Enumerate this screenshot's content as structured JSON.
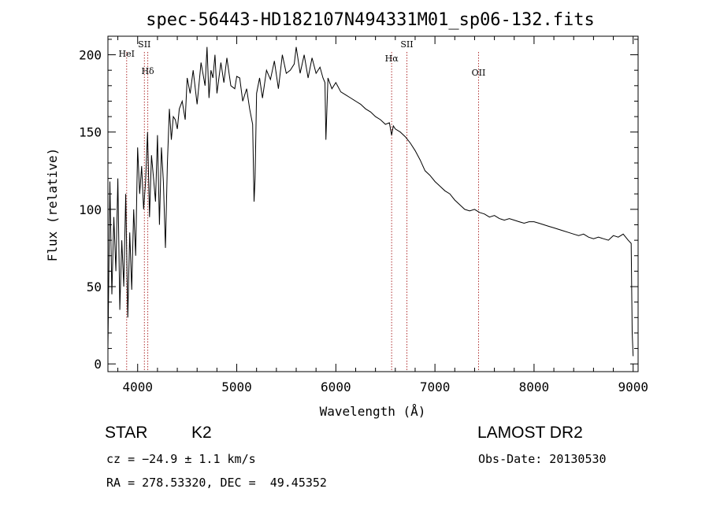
{
  "chart_data": {
    "type": "line",
    "title": "spec-56443-HD182107N494331M01_sp06-132.fits",
    "xlabel": "Wavelength (Å)",
    "ylabel": "Flux (relative)",
    "xlim": [
      3700,
      9050
    ],
    "ylim": [
      -5,
      212
    ],
    "xticks": [
      4000,
      5000,
      6000,
      7000,
      8000,
      9000
    ],
    "yticks": [
      0,
      50,
      100,
      150,
      200
    ],
    "series": [
      {
        "x": [
          3700,
          3720,
          3740,
          3760,
          3780,
          3800,
          3820,
          3840,
          3860,
          3880,
          3900,
          3920,
          3940,
          3960,
          3980,
          4000,
          4020,
          4040,
          4060,
          4080,
          4100,
          4120,
          4140,
          4160,
          4180,
          4200,
          4220,
          4240,
          4260,
          4280,
          4300,
          4320,
          4340,
          4360,
          4380,
          4400,
          4420,
          4450,
          4480,
          4500,
          4530,
          4560,
          4600,
          4640,
          4680,
          4700,
          4720,
          4740,
          4760,
          4780,
          4800,
          4840,
          4870,
          4900,
          4940,
          4980,
          5000,
          5030,
          5060,
          5100,
          5130,
          5160,
          5175,
          5185,
          5200,
          5230,
          5260,
          5300,
          5340,
          5380,
          5420,
          5460,
          5500,
          5540,
          5580,
          5600,
          5640,
          5680,
          5720,
          5760,
          5800,
          5840,
          5870,
          5890,
          5900,
          5920,
          5960,
          6000,
          6050,
          6100,
          6150,
          6200,
          6250,
          6300,
          6350,
          6400,
          6450,
          6500,
          6540,
          6563,
          6580,
          6600,
          6650,
          6700,
          6750,
          6800,
          6850,
          6900,
          6950,
          7000,
          7050,
          7100,
          7150,
          7200,
          7250,
          7300,
          7350,
          7400,
          7450,
          7500,
          7550,
          7600,
          7650,
          7700,
          7750,
          7800,
          7850,
          7900,
          7950,
          8000,
          8050,
          8100,
          8150,
          8200,
          8250,
          8300,
          8350,
          8400,
          8450,
          8500,
          8550,
          8600,
          8650,
          8700,
          8750,
          8800,
          8850,
          8900,
          8950,
          8980,
          8990,
          9000
        ],
        "y": [
          10,
          118,
          45,
          95,
          60,
          120,
          35,
          80,
          50,
          110,
          30,
          85,
          48,
          100,
          70,
          140,
          110,
          128,
          100,
          118,
          150,
          95,
          135,
          120,
          105,
          148,
          90,
          140,
          118,
          75,
          130,
          165,
          145,
          160,
          158,
          152,
          165,
          170,
          158,
          185,
          175,
          190,
          168,
          195,
          180,
          205,
          172,
          190,
          185,
          200,
          175,
          195,
          182,
          198,
          180,
          178,
          186,
          185,
          170,
          178,
          165,
          155,
          105,
          120,
          175,
          185,
          172,
          190,
          184,
          196,
          178,
          200,
          188,
          190,
          194,
          205,
          188,
          200,
          185,
          198,
          188,
          192,
          185,
          182,
          145,
          185,
          178,
          182,
          176,
          174,
          172,
          170,
          168,
          165,
          163,
          160,
          158,
          155,
          156,
          148,
          154,
          152,
          150,
          147,
          143,
          138,
          132,
          125,
          122,
          118,
          115,
          112,
          110,
          106,
          103,
          100,
          99,
          100,
          98,
          97,
          95,
          96,
          94,
          93,
          94,
          93,
          92,
          91,
          92,
          92,
          91,
          90,
          89,
          88,
          87,
          86,
          85,
          84,
          83,
          84,
          82,
          81,
          82,
          81,
          80,
          83,
          82,
          84,
          80,
          78,
          20,
          5
        ]
      }
    ],
    "lines": [
      {
        "name": "HeI",
        "x": 3889
      },
      {
        "name": "SII",
        "x": 4068
      },
      {
        "name": "Hδ",
        "x": 4102
      },
      {
        "name": "Hα",
        "x": 6563
      },
      {
        "name": "SII",
        "x": 6717
      },
      {
        "name": "OII",
        "x": 7440
      }
    ]
  },
  "info": {
    "class": "STAR",
    "subclass": "K2",
    "survey": "LAMOST DR2",
    "cz": "cz = −24.9 ± 1.1 km/s",
    "obs_date": "Obs-Date: 20130530",
    "coords": "RA = 278.53320, DEC =  49.45352"
  },
  "colors": {
    "spectrum": "#000000",
    "line_marker": "#b03030"
  }
}
